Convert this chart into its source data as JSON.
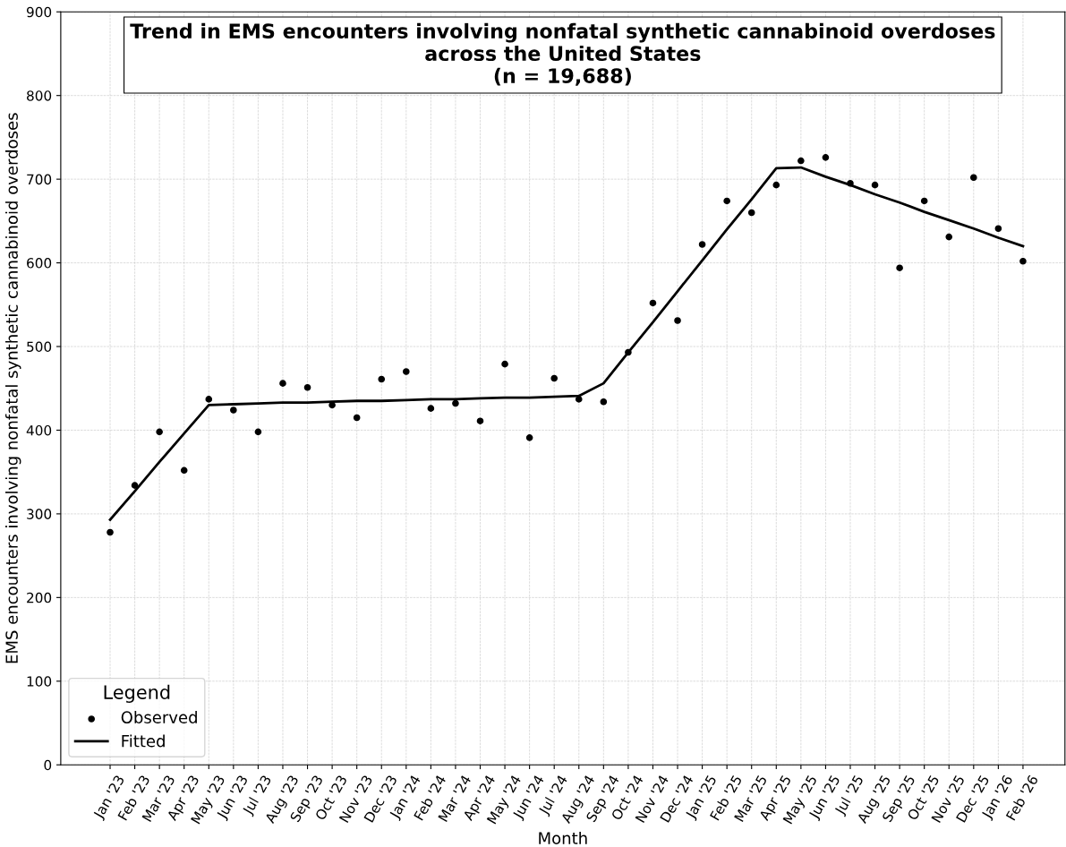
{
  "chart_data": {
    "type": "scatter",
    "title": "Trend in EMS encounters involving nonfatal synthetic cannabinoid overdoses\nacross the United States\n(n = 19,688)",
    "xlabel": "Month",
    "ylabel": "EMS encounters involving nonfatal synthetic cannabinoid overdoses",
    "categories": [
      "Jan '23",
      "Feb '23",
      "Mar '23",
      "Apr '23",
      "May '23",
      "Jun '23",
      "Jul '23",
      "Aug '23",
      "Sep '23",
      "Oct '23",
      "Nov '23",
      "Dec '23",
      "Jan '24",
      "Feb '24",
      "Mar '24",
      "Apr '24",
      "May '24",
      "Jun '24",
      "Jul '24",
      "Aug '24",
      "Sep '24",
      "Oct '24",
      "Nov '24",
      "Dec '24",
      "Jan '25",
      "Feb '25",
      "Mar '25",
      "Apr '25",
      "May '25",
      "Jun '25",
      "Jul '25",
      "Aug '25",
      "Sep '25",
      "Oct '25",
      "Nov '25",
      "Dec '25",
      "Jan '26",
      "Feb '26"
    ],
    "series": [
      {
        "name": "Observed",
        "color": "#000000",
        "marker": "circle",
        "values": [
          278,
          334,
          398,
          352,
          437,
          424,
          398,
          456,
          451,
          430,
          415,
          461,
          470,
          426,
          432,
          411,
          479,
          391,
          462,
          437,
          434,
          493,
          552,
          531,
          622,
          674,
          660,
          693,
          722,
          726,
          695,
          693,
          594,
          674,
          631,
          702,
          641,
          602
        ]
      },
      {
        "name": "Fitted",
        "type": "line",
        "color": "#000000",
        "line_style": "solid",
        "values": [
          293,
          327,
          362,
          396,
          430,
          431,
          432,
          433,
          433,
          434,
          435,
          435,
          436,
          437,
          437,
          438,
          439,
          439,
          440,
          441,
          456,
          493,
          529,
          566,
          603,
          640,
          676,
          713,
          714,
          703,
          693,
          682,
          672,
          661,
          651,
          641,
          630,
          620
        ]
      }
    ],
    "ylim": [
      0,
      900
    ],
    "yticks": [
      0,
      100,
      200,
      300,
      400,
      500,
      600,
      700,
      800,
      900
    ],
    "grid": true,
    "legend": "bottom left",
    "legend_title": "Legend"
  }
}
